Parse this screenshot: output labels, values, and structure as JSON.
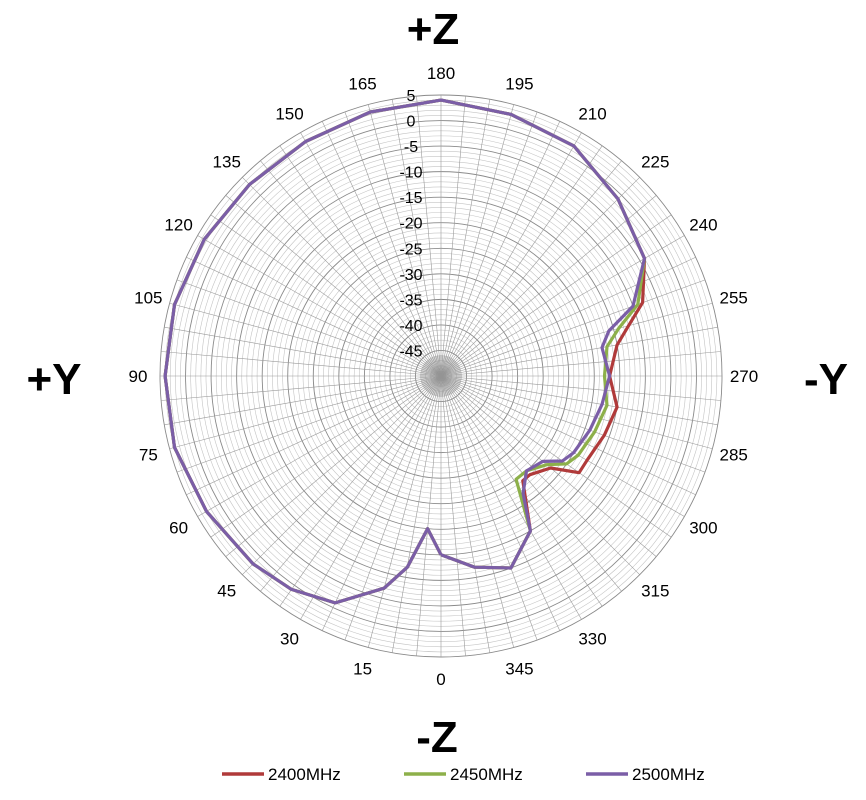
{
  "axis_labels": {
    "top": "+Z",
    "bottom": "-Z",
    "left": "+Y",
    "right": "-Y"
  },
  "chart_data": {
    "type": "polar-line",
    "r_range": [
      -50,
      5
    ],
    "radial_ticks": [
      5,
      0,
      -5,
      -10,
      -15,
      -20,
      -25,
      -30,
      -35,
      -40,
      -45
    ],
    "angle_labels": [
      "0",
      "15",
      "30",
      "45",
      "60",
      "75",
      "90",
      "105",
      "120",
      "135",
      "150",
      "165",
      "180",
      "195",
      "210",
      "225",
      "240",
      "255",
      "270",
      "285",
      "300",
      "315",
      "330",
      "345"
    ],
    "angle_direction": "clockwise from bottom",
    "grid": true,
    "legend_position": "bottom",
    "colors": {
      "2400MHz": "#b03a3a",
      "2450MHz": "#8db04a",
      "2500MHz": "#7b5ea7"
    },
    "series": [
      {
        "name": "2400MHz",
        "points": [
          [
            0,
            -15
          ],
          [
            5,
            -20
          ],
          [
            10,
            -12
          ],
          [
            15,
            -7
          ],
          [
            25,
            -1
          ],
          [
            35,
            1
          ],
          [
            45,
            2
          ],
          [
            60,
            3
          ],
          [
            75,
            4
          ],
          [
            90,
            4
          ],
          [
            105,
            4
          ],
          [
            120,
            3.5
          ],
          [
            135,
            3
          ],
          [
            150,
            3
          ],
          [
            165,
            3.5
          ],
          [
            180,
            4
          ],
          [
            195,
            3
          ],
          [
            210,
            2
          ],
          [
            225,
            -1
          ],
          [
            240,
            -4
          ],
          [
            250,
            -8
          ],
          [
            255,
            -12
          ],
          [
            260,
            -15
          ],
          [
            270,
            -17
          ],
          [
            280,
            -15
          ],
          [
            290,
            -16
          ],
          [
            300,
            -17
          ],
          [
            305,
            -17
          ],
          [
            310,
            -22
          ],
          [
            318,
            -24
          ],
          [
            322,
            -24
          ],
          [
            330,
            -15
          ],
          [
            340,
            -10
          ],
          [
            350,
            -12
          ],
          [
            360,
            -15
          ]
        ]
      },
      {
        "name": "2450MHz",
        "points": [
          [
            0,
            -15
          ],
          [
            5,
            -20
          ],
          [
            10,
            -12
          ],
          [
            15,
            -7
          ],
          [
            25,
            -1
          ],
          [
            35,
            1
          ],
          [
            45,
            2
          ],
          [
            60,
            3
          ],
          [
            75,
            4
          ],
          [
            90,
            4
          ],
          [
            105,
            4
          ],
          [
            120,
            3.5
          ],
          [
            135,
            3
          ],
          [
            150,
            3
          ],
          [
            165,
            3.5
          ],
          [
            180,
            4
          ],
          [
            195,
            3
          ],
          [
            210,
            2
          ],
          [
            225,
            -1
          ],
          [
            240,
            -4
          ],
          [
            250,
            -9
          ],
          [
            255,
            -14
          ],
          [
            260,
            -17
          ],
          [
            270,
            -18
          ],
          [
            280,
            -17
          ],
          [
            290,
            -18
          ],
          [
            300,
            -19
          ],
          [
            305,
            -20
          ],
          [
            310,
            -23
          ],
          [
            318,
            -25
          ],
          [
            324,
            -25
          ],
          [
            330,
            -15
          ],
          [
            340,
            -10
          ],
          [
            350,
            -12
          ],
          [
            360,
            -15
          ]
        ]
      },
      {
        "name": "2500MHz",
        "points": [
          [
            0,
            -15
          ],
          [
            5,
            -20
          ],
          [
            10,
            -12
          ],
          [
            15,
            -7
          ],
          [
            25,
            -1
          ],
          [
            35,
            1
          ],
          [
            45,
            2
          ],
          [
            60,
            3
          ],
          [
            75,
            4
          ],
          [
            90,
            4
          ],
          [
            105,
            4
          ],
          [
            120,
            3.5
          ],
          [
            135,
            3
          ],
          [
            150,
            3
          ],
          [
            165,
            3.5
          ],
          [
            180,
            4
          ],
          [
            195,
            3
          ],
          [
            210,
            2
          ],
          [
            225,
            -1
          ],
          [
            240,
            -4
          ],
          [
            250,
            -10
          ],
          [
            255,
            -16
          ],
          [
            260,
            -18
          ],
          [
            270,
            -17
          ],
          [
            280,
            -18
          ],
          [
            290,
            -19
          ],
          [
            300,
            -20
          ],
          [
            305,
            -21
          ],
          [
            310,
            -24
          ],
          [
            318,
            -25
          ],
          [
            325,
            -22
          ],
          [
            330,
            -15
          ],
          [
            340,
            -10
          ],
          [
            350,
            -12
          ],
          [
            360,
            -15
          ]
        ]
      }
    ]
  }
}
